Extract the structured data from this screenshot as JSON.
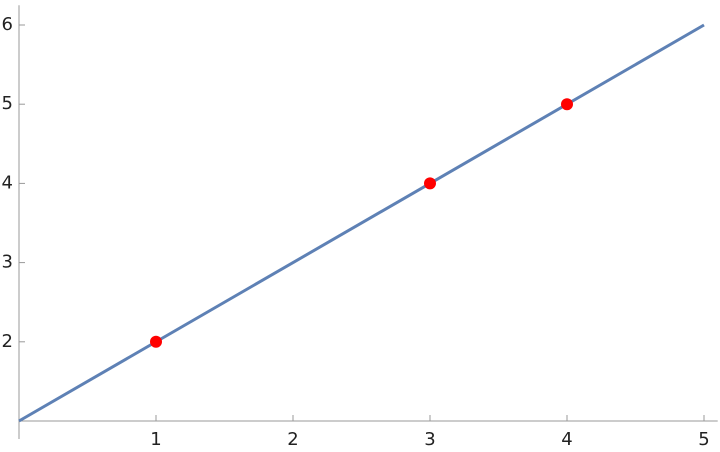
{
  "chart_data": {
    "type": "line",
    "series": [
      {
        "type": "line",
        "color": "#5e81b5",
        "x": [
          0,
          5
        ],
        "values": [
          1,
          6
        ]
      },
      {
        "type": "scatter",
        "color": "#ff0000",
        "x": [
          1,
          3,
          4
        ],
        "values": [
          2,
          4,
          5
        ]
      }
    ],
    "xlim": [
      0,
      5.1
    ],
    "ylim": [
      1,
      6.25
    ],
    "xticks": [
      1,
      2,
      3,
      4,
      5
    ],
    "yticks": [
      2,
      3,
      4,
      5,
      6
    ],
    "axis_color": "#999999",
    "grid": false
  }
}
